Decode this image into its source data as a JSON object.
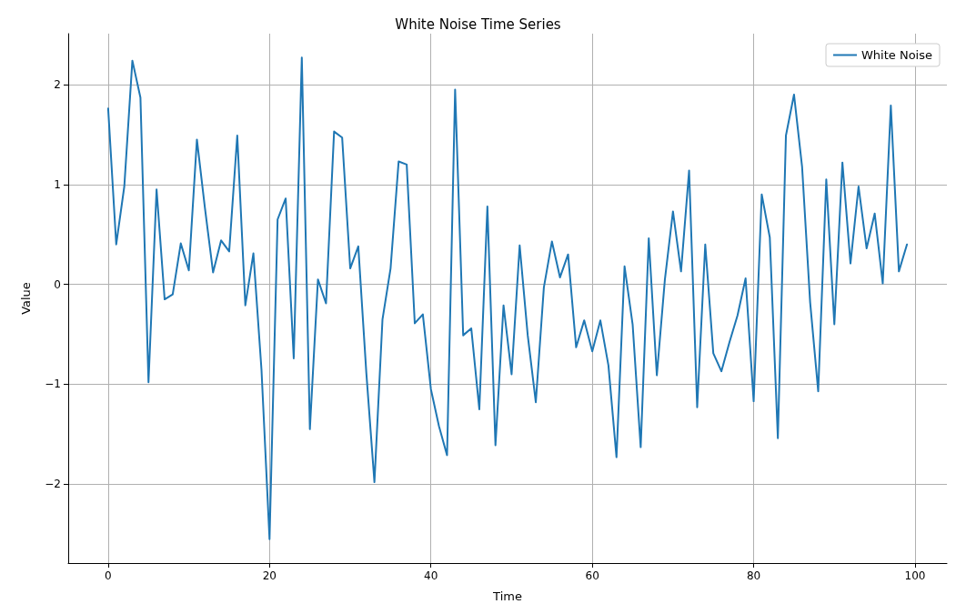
{
  "chart_data": {
    "type": "line",
    "title": "White Noise Time Series",
    "xlabel": "Time",
    "ylabel": "Value",
    "x": [
      0,
      1,
      2,
      3,
      4,
      5,
      6,
      7,
      8,
      9,
      10,
      11,
      12,
      13,
      14,
      15,
      16,
      17,
      18,
      19,
      20,
      21,
      22,
      23,
      24,
      25,
      26,
      27,
      28,
      29,
      30,
      31,
      32,
      33,
      34,
      35,
      36,
      37,
      38,
      39,
      40,
      41,
      42,
      43,
      44,
      45,
      46,
      47,
      48,
      49,
      50,
      51,
      52,
      53,
      54,
      55,
      56,
      57,
      58,
      59,
      60,
      61,
      62,
      63,
      64,
      65,
      66,
      67,
      68,
      69,
      70,
      71,
      72,
      73,
      74,
      75,
      76,
      77,
      78,
      79,
      80,
      81,
      82,
      83,
      84,
      85,
      86,
      87,
      88,
      89,
      90,
      91,
      92,
      93,
      94,
      95,
      96,
      97,
      98,
      99
    ],
    "series": [
      {
        "name": "White Noise",
        "color": "#1f77b4",
        "values": [
          1.76,
          0.4,
          0.98,
          2.24,
          1.87,
          -0.98,
          0.95,
          -0.15,
          -0.1,
          0.41,
          0.14,
          1.45,
          0.76,
          0.12,
          0.44,
          0.33,
          1.49,
          -0.21,
          0.31,
          -0.85,
          -2.55,
          0.65,
          0.86,
          -0.74,
          2.27,
          -1.45,
          0.05,
          -0.19,
          1.53,
          1.47,
          0.16,
          0.38,
          -0.89,
          -1.98,
          -0.35,
          0.16,
          1.23,
          1.2,
          -0.39,
          -0.3,
          -1.05,
          -1.42,
          -1.71,
          1.95,
          -0.51,
          -0.44,
          -1.25,
          0.78,
          -1.61,
          -0.21,
          -0.9,
          0.39,
          -0.51,
          -1.18,
          -0.03,
          0.43,
          0.07,
          0.3,
          -0.63,
          -0.36,
          -0.67,
          -0.36,
          -0.81,
          -1.73,
          0.18,
          -0.4,
          -1.63,
          0.46,
          -0.91,
          0.05,
          0.73,
          0.13,
          1.14,
          -1.23,
          0.4,
          -0.69,
          -0.87,
          -0.58,
          -0.31,
          0.06,
          -1.17,
          0.9,
          0.47,
          -1.54,
          1.49,
          1.9,
          1.18,
          -0.18,
          -1.07,
          1.05,
          -0.4,
          1.22,
          0.21,
          0.98,
          0.36,
          0.71,
          0.01,
          1.79,
          0.13,
          0.4
        ]
      }
    ],
    "xlim": [
      -4.95,
      103.95
    ],
    "ylim": [
      -2.79,
      2.51
    ],
    "xticks": [
      0,
      20,
      40,
      60,
      80,
      100
    ],
    "yticks": [
      {
        "value": -2,
        "label": "−2"
      },
      {
        "value": -1,
        "label": "−1"
      },
      0,
      1,
      2
    ],
    "grid": true,
    "legend": "top right",
    "marker": "none",
    "line_style": "solid"
  }
}
